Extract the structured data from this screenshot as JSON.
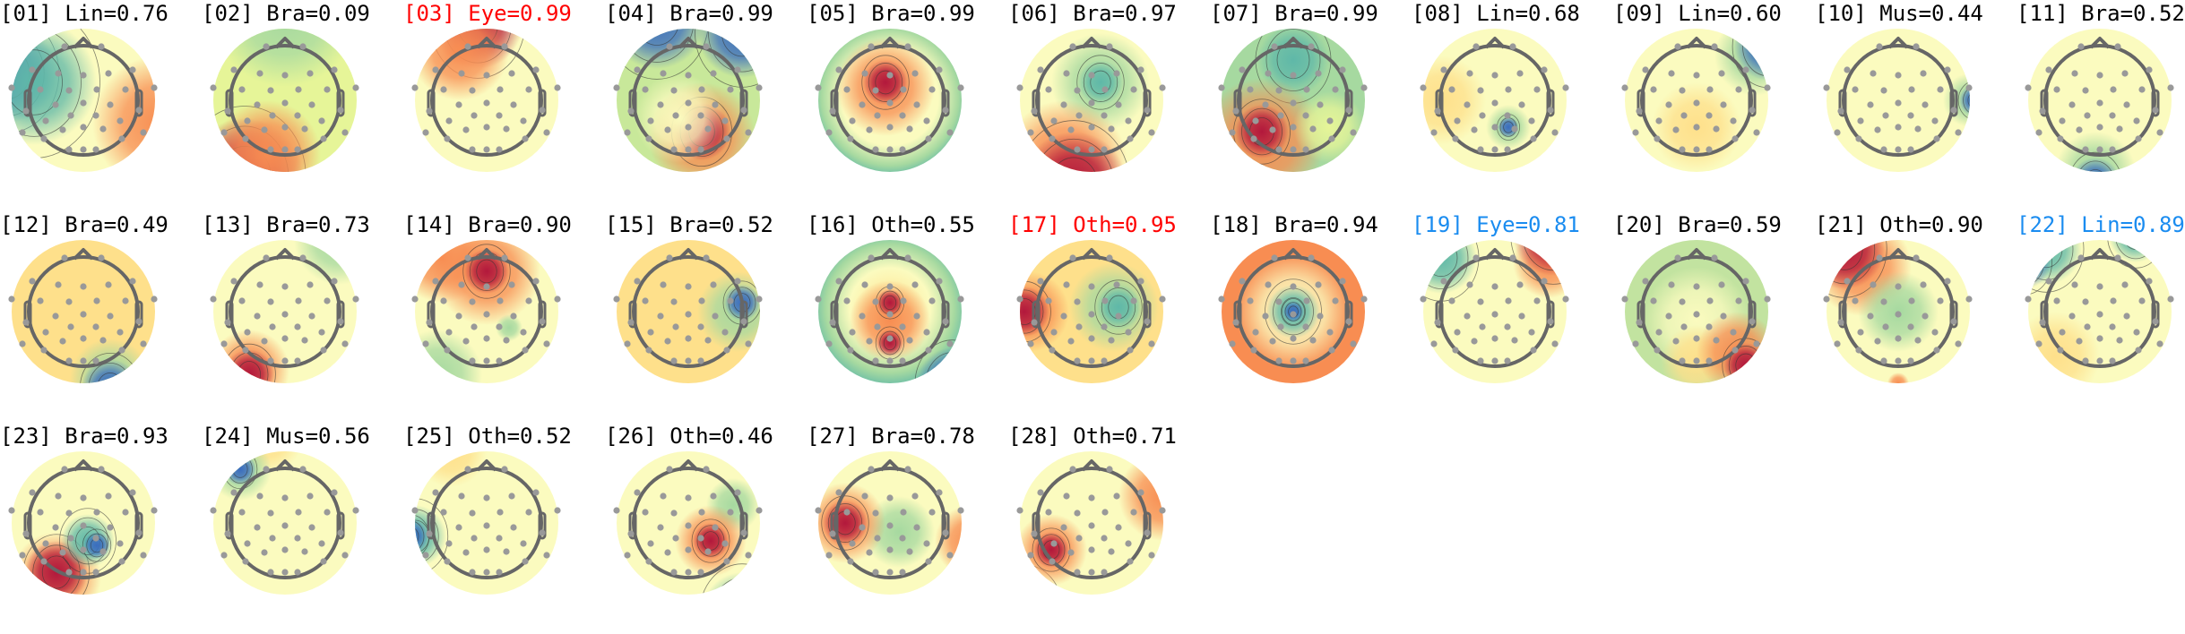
{
  "colors": {
    "default_label": "#000000",
    "red_label": "#ff0000",
    "blue_label": "#1a8cf0"
  },
  "colormap": "RdYlBu_r spectral",
  "chart_data": {
    "type": "topomap-grid",
    "columns": 11,
    "components": [
      {
        "label": "[01] Lin=0.76",
        "color": "default_label"
      },
      {
        "label": "[02] Bra=0.09",
        "color": "default_label"
      },
      {
        "label": "[03] Eye=0.99",
        "color": "red_label"
      },
      {
        "label": "[04] Bra=0.99",
        "color": "default_label"
      },
      {
        "label": "[05] Bra=0.99",
        "color": "default_label"
      },
      {
        "label": "[06] Bra=0.97",
        "color": "default_label"
      },
      {
        "label": "[07] Bra=0.99",
        "color": "default_label"
      },
      {
        "label": "[08] Lin=0.68",
        "color": "default_label"
      },
      {
        "label": "[09] Lin=0.60",
        "color": "default_label"
      },
      {
        "label": "[10] Mus=0.44",
        "color": "default_label"
      },
      {
        "label": "[11] Bra=0.52",
        "color": "default_label"
      },
      {
        "label": "[12] Bra=0.49",
        "color": "default_label"
      },
      {
        "label": "[13] Bra=0.73",
        "color": "default_label"
      },
      {
        "label": "[14] Bra=0.90",
        "color": "default_label"
      },
      {
        "label": "[15] Bra=0.52",
        "color": "default_label"
      },
      {
        "label": "[16] Oth=0.55",
        "color": "default_label"
      },
      {
        "label": "[17] Oth=0.95",
        "color": "red_label"
      },
      {
        "label": "[18] Bra=0.94",
        "color": "default_label"
      },
      {
        "label": "[19] Eye=0.81",
        "color": "blue_label"
      },
      {
        "label": "[20] Bra=0.59",
        "color": "default_label"
      },
      {
        "label": "[21] Oth=0.90",
        "color": "default_label"
      },
      {
        "label": "[22] Lin=0.89",
        "color": "blue_label"
      },
      {
        "label": "[23] Bra=0.93",
        "color": "default_label"
      },
      {
        "label": "[24] Mus=0.56",
        "color": "default_label"
      },
      {
        "label": "[25] Oth=0.52",
        "color": "default_label"
      },
      {
        "label": "[26] Oth=0.46",
        "color": "default_label"
      },
      {
        "label": "[27] Bra=0.78",
        "color": "default_label"
      },
      {
        "label": "[28] Oth=0.71",
        "color": "default_label"
      }
    ]
  }
}
